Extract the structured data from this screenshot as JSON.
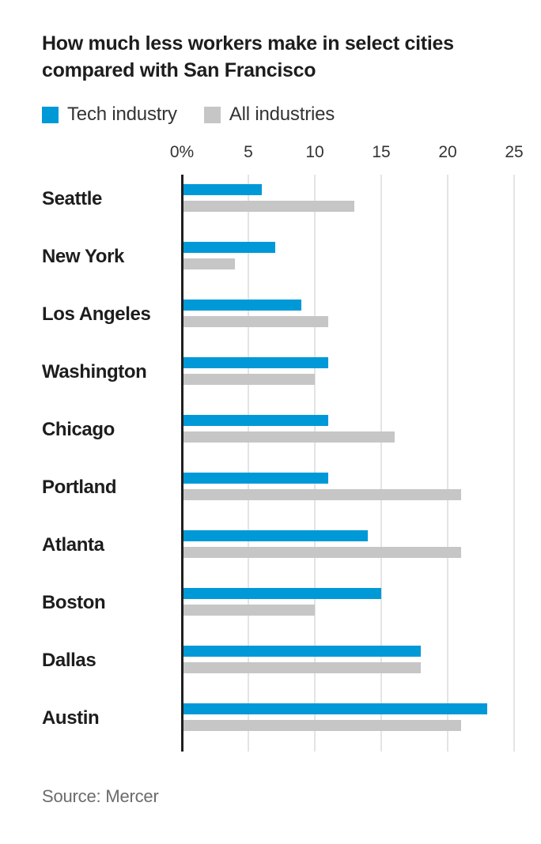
{
  "title": {
    "line1": "How much less workers make in select cities",
    "line2": "compared with San Francisco"
  },
  "legend": {
    "items": [
      {
        "label": "Tech industry",
        "color": "#0099d8"
      },
      {
        "label": "All industries",
        "color": "#c6c6c6"
      }
    ]
  },
  "source": "Source: Mercer",
  "colors": {
    "tech_bar": "#0099d8",
    "all_bar": "#c6c6c6",
    "axis": "#1f1f1f",
    "gridline": "#e4e4e4"
  },
  "chart_data": {
    "type": "bar",
    "orientation": "horizontal",
    "title": "How much less workers make in select cities compared with San Francisco",
    "categories": [
      "Seattle",
      "New York",
      "Los Angeles",
      "Washington",
      "Chicago",
      "Portland",
      "Atlanta",
      "Boston",
      "Dallas",
      "Austin"
    ],
    "series": [
      {
        "name": "Tech industry",
        "color": "#0099d8",
        "values": [
          6,
          7,
          9,
          11,
          11,
          11,
          14,
          15,
          18,
          23
        ]
      },
      {
        "name": "All industries",
        "color": "#c6c6c6",
        "values": [
          13,
          4,
          11,
          10,
          16,
          21,
          21,
          10,
          18,
          21
        ]
      }
    ],
    "x_ticks": [
      {
        "label": "0%",
        "value": 0
      },
      {
        "label": "5",
        "value": 5
      },
      {
        "label": "10",
        "value": 10
      },
      {
        "label": "15",
        "value": 15
      },
      {
        "label": "20",
        "value": 20
      },
      {
        "label": "25",
        "value": 25
      }
    ],
    "xlim": [
      0,
      25
    ],
    "xlabel": "",
    "ylabel": "",
    "unit": "percent less than San Francisco",
    "grid": true,
    "legend_position": "top"
  }
}
